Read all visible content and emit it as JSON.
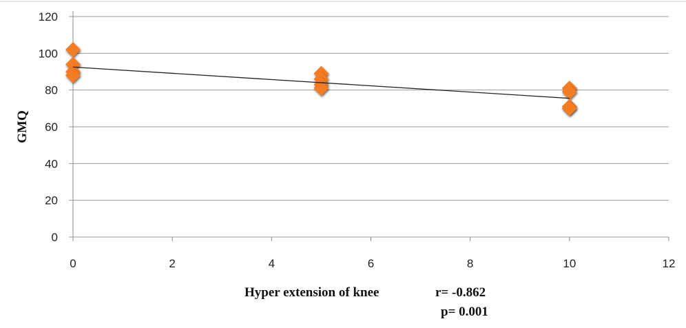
{
  "chart_data": {
    "type": "scatter",
    "xlabel": "Hyper extension of knee",
    "ylabel": "GMQ",
    "xlim": [
      0,
      12
    ],
    "ylim": [
      0,
      120
    ],
    "xticks": [
      0,
      2,
      4,
      6,
      8,
      10,
      12
    ],
    "yticks": [
      0,
      20,
      40,
      60,
      80,
      100,
      120
    ],
    "grid": "horizontal",
    "points": [
      {
        "x": 0,
        "y": 102
      },
      {
        "x": 0,
        "y": 94
      },
      {
        "x": 0,
        "y": 90
      },
      {
        "x": 0,
        "y": 88
      },
      {
        "x": 5,
        "y": 89
      },
      {
        "x": 5,
        "y": 86
      },
      {
        "x": 5,
        "y": 83
      },
      {
        "x": 5,
        "y": 81
      },
      {
        "x": 10,
        "y": 81
      },
      {
        "x": 10,
        "y": 79
      },
      {
        "x": 10,
        "y": 71
      },
      {
        "x": 10,
        "y": 70
      }
    ],
    "trendline": {
      "x": [
        0,
        10
      ],
      "y": [
        92.5,
        75.5
      ]
    },
    "annotations": [
      "r= -0.862",
      "p=  0.001"
    ],
    "marker_color": "#f47b20",
    "trendline_color": "#222222"
  }
}
